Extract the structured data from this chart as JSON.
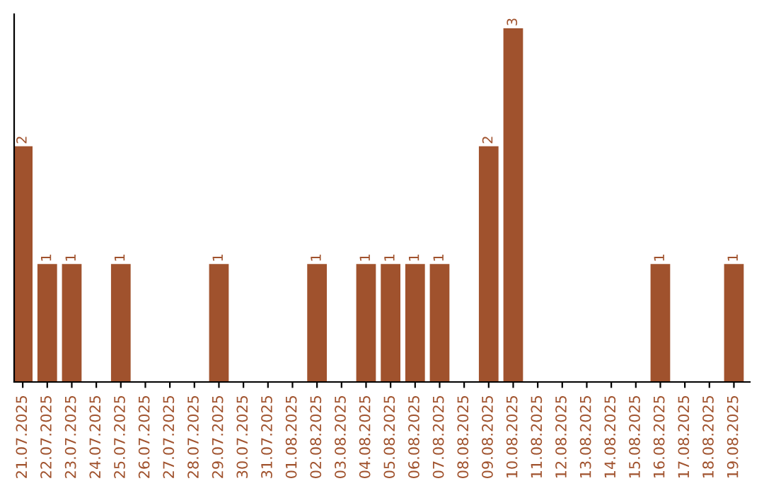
{
  "chart_data": {
    "type": "bar",
    "categories": [
      "21.07.2025",
      "22.07.2025",
      "23.07.2025",
      "24.07.2025",
      "25.07.2025",
      "26.07.2025",
      "27.07.2025",
      "28.07.2025",
      "29.07.2025",
      "30.07.2025",
      "31.07.2025",
      "01.08.2025",
      "02.08.2025",
      "03.08.2025",
      "04.08.2025",
      "05.08.2025",
      "06.08.2025",
      "07.08.2025",
      "08.08.2025",
      "09.08.2025",
      "10.08.2025",
      "11.08.2025",
      "12.08.2025",
      "13.08.2025",
      "14.08.2025",
      "15.08.2025",
      "16.08.2025",
      "17.08.2025",
      "18.08.2025",
      "19.08.2025"
    ],
    "values": [
      2,
      1,
      1,
      0,
      1,
      0,
      0,
      0,
      1,
      0,
      0,
      0,
      1,
      0,
      1,
      1,
      1,
      1,
      0,
      2,
      3,
      0,
      0,
      0,
      0,
      0,
      1,
      0,
      0,
      1
    ],
    "value_labels": [
      "2",
      "1",
      "1",
      null,
      "1",
      null,
      null,
      null,
      "1",
      null,
      null,
      null,
      "1",
      null,
      "1",
      "1",
      "1",
      "1",
      null,
      "2",
      "3",
      null,
      null,
      null,
      null,
      null,
      "1",
      null,
      null,
      "1"
    ],
    "color": "#a0522d",
    "ylim": [
      0,
      3.12
    ],
    "tick_labels": "x",
    "grid": false,
    "legend": false
  }
}
